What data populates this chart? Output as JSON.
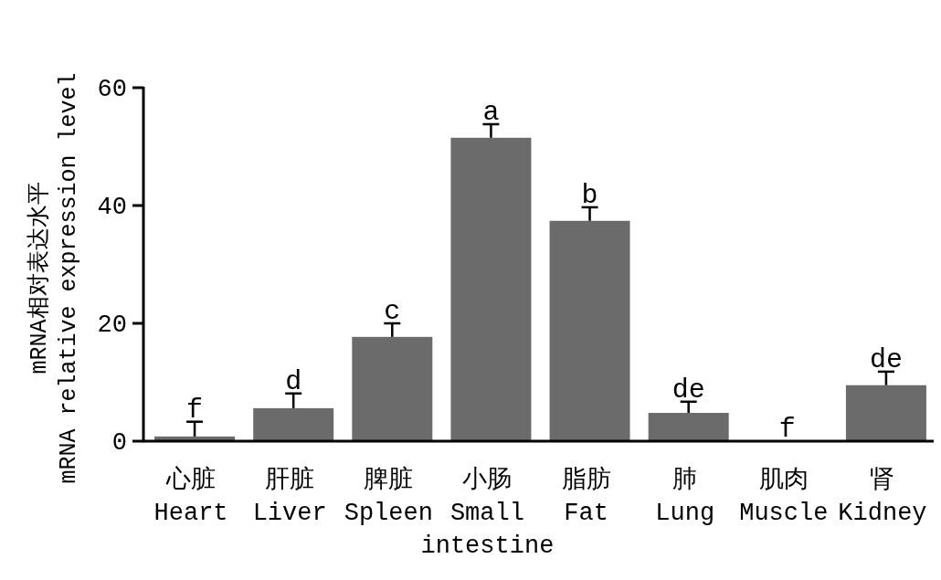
{
  "chart_data": {
    "type": "bar",
    "ylabel": "mRNA相对表达水平\nmRNA relative expression level",
    "categories": [
      "心脏\nHeart",
      "肝脏\nLiver",
      "脾脏\nSpleen",
      "小肠\nSmall\nintestine",
      "脂肪\nFat",
      "肺\nLung",
      "肌肉\nMuscle",
      "肾\nKidney"
    ],
    "values": [
      0.8,
      5.6,
      17.7,
      51.5,
      37.4,
      4.8,
      0,
      9.5
    ],
    "errors": [
      [
        0.8,
        3.3
      ],
      [
        5.6,
        8.1
      ],
      [
        17.7,
        20.0
      ],
      [
        51.5,
        53.8
      ],
      [
        37.4,
        39.7
      ],
      [
        4.8,
        6.7
      ],
      null,
      [
        9.5,
        11.8
      ]
    ],
    "color": "#6b6b6b",
    "ylim": [
      0,
      60
    ],
    "yticks": [
      0,
      20,
      40,
      60
    ],
    "grid": false,
    "annotations": [
      {
        "text": "f",
        "x": "心脏\nHeart",
        "y": 3.3
      },
      {
        "text": "d",
        "x": "肝脏\nLiver",
        "y": 8.1
      },
      {
        "text": "c",
        "x": "脾脏\nSpleen",
        "y": 20.0
      },
      {
        "text": "a",
        "x": "小肠\nSmall\nintestine",
        "y": 53.8
      },
      {
        "text": "b",
        "x": "脂肪\nFat",
        "y": 39.7
      },
      {
        "text": "de",
        "x": "肺\nLung",
        "y": 6.7
      },
      {
        "text": "f",
        "x": "肌肉\nMuscle",
        "y": 0
      },
      {
        "text": "de",
        "x": "肾\nKidney",
        "y": 11.8
      }
    ]
  }
}
